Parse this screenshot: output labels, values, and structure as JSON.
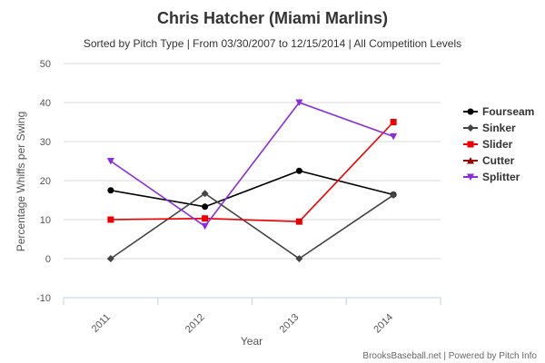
{
  "chart_data": {
    "type": "line",
    "title": "Chris Hatcher (Miami Marlins)",
    "subtitle": "Sorted by Pitch Type | From 03/30/2007 to 12/15/2014 | All Competition Levels",
    "xlabel": "Year",
    "ylabel": "Percentage Whiffs per Swing",
    "categories": [
      "2011",
      "2012",
      "2013",
      "2014"
    ],
    "ylim": [
      -10,
      50
    ],
    "yticks": [
      -10,
      0,
      10,
      20,
      30,
      40,
      50
    ],
    "grid": "horizontal",
    "legend_position": "right",
    "credit": "BrooksBaseball.net | Powered by Pitch Info",
    "series": [
      {
        "name": "Fourseam",
        "color": "#000000",
        "marker": "circle",
        "values": [
          17.5,
          13.3,
          22.5,
          16.4
        ]
      },
      {
        "name": "Sinker",
        "color": "#444444",
        "marker": "diamond",
        "values": [
          0,
          16.7,
          0,
          16.3
        ]
      },
      {
        "name": "Slider",
        "color": "#ee0000",
        "marker": "square",
        "values": [
          10.0,
          10.3,
          9.5,
          35.0
        ]
      },
      {
        "name": "Cutter",
        "color": "#990000",
        "marker": "triangle",
        "values": [
          null,
          null,
          null,
          null
        ]
      },
      {
        "name": "Splitter",
        "color": "#8a2be2",
        "marker": "triangle-down",
        "values": [
          25.0,
          8.3,
          40.0,
          31.3
        ]
      }
    ]
  }
}
